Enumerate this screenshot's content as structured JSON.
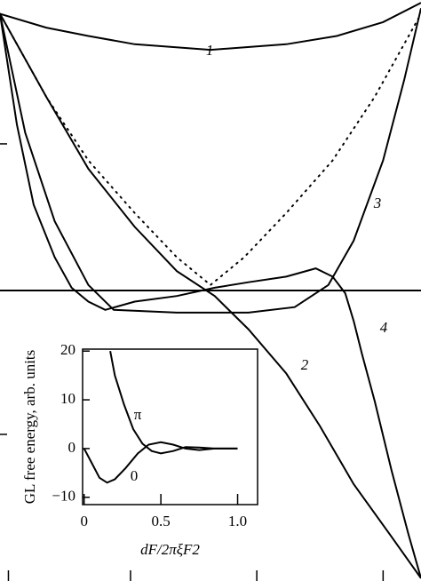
{
  "chart_data": [
    {
      "type": "line",
      "xlim": [
        0,
        1
      ],
      "ylim": [
        -1.05,
        1.05
      ],
      "xticks": [
        0.02,
        0.31,
        0.61,
        0.91
      ],
      "yticks": [
        -0.52,
        0.53
      ],
      "hlines": [
        0
      ],
      "series": [
        {
          "name": "1",
          "color": "#000000",
          "dash": "solid",
          "x": [
            0,
            0.11,
            0.21,
            0.32,
            0.5,
            0.68,
            0.8,
            0.91,
            1.0
          ],
          "values": [
            1.0,
            0.95,
            0.92,
            0.89,
            0.87,
            0.89,
            0.92,
            0.97,
            1.04
          ]
        },
        {
          "name": "2",
          "color": "#000000",
          "dash": "solid",
          "x": [
            0,
            0.11,
            0.21,
            0.32,
            0.42,
            0.51,
            0.59,
            0.68,
            0.76,
            0.84,
            0.93,
            1.0
          ],
          "values": [
            1.0,
            0.7,
            0.44,
            0.23,
            0.07,
            -0.02,
            -0.14,
            -0.3,
            -0.49,
            -0.7,
            -0.89,
            -1.04
          ]
        },
        {
          "name": "3",
          "color": "#000000",
          "dash": "solid",
          "x": [
            0,
            0.06,
            0.13,
            0.21,
            0.27,
            0.42,
            0.59,
            0.7,
            0.78,
            0.84,
            0.91,
            0.96,
            1.0
          ],
          "values": [
            1.0,
            0.57,
            0.25,
            0.02,
            -0.07,
            -0.08,
            -0.08,
            -0.06,
            0.02,
            0.18,
            0.47,
            0.76,
            1.02
          ]
        },
        {
          "name": "4",
          "color": "#000000",
          "dash": "solid",
          "x": [
            0,
            0.04,
            0.08,
            0.13,
            0.17,
            0.21,
            0.25,
            0.32,
            0.42,
            0.51,
            0.59,
            0.68,
            0.75,
            0.79,
            0.82,
            0.84,
            0.86,
            0.89,
            0.93,
            0.97,
            1.0
          ],
          "values": [
            1.0,
            0.6,
            0.31,
            0.12,
            0.01,
            -0.04,
            -0.07,
            -0.04,
            -0.02,
            0.01,
            0.03,
            0.05,
            0.08,
            0.05,
            -0.01,
            -0.11,
            -0.23,
            -0.4,
            -0.65,
            -0.88,
            -1.04
          ]
        },
        {
          "color": "#000000",
          "dash": "dotted",
          "x": [
            0,
            0.11,
            0.21,
            0.32,
            0.42,
            0.5,
            0.58,
            0.68,
            0.79,
            0.89,
            1.0
          ],
          "values": [
            1.0,
            0.7,
            0.47,
            0.28,
            0.12,
            0.02,
            0.12,
            0.28,
            0.47,
            0.7,
            1.0
          ]
        }
      ]
    },
    {
      "type": "line",
      "xlabel": "dF/2πξF2",
      "ylabel": "GL free energy, arb. units",
      "xlim": [
        -0.01,
        1.13
      ],
      "ylim": [
        -11.5,
        20.4
      ],
      "xticks": [
        0,
        0.5,
        {
          "value": 1,
          "label": "1.0"
        }
      ],
      "yticks": [
        {
          "value": -10,
          "label": "−10"
        },
        0,
        10,
        20
      ],
      "series": [
        {
          "name": "π",
          "color": "#000000",
          "dash": "solid",
          "x": [
            0.17,
            0.2,
            0.26,
            0.32,
            0.38,
            0.44,
            0.5,
            0.58,
            0.66,
            0.75,
            0.85,
            1.0
          ],
          "values": [
            20,
            15,
            9,
            4,
            1,
            -0.5,
            -1,
            -0.5,
            0.3,
            0.2,
            0,
            0
          ]
        },
        {
          "name": "0",
          "color": "#000000",
          "dash": "solid",
          "x": [
            0,
            0.05,
            0.1,
            0.15,
            0.2,
            0.27,
            0.35,
            0.42,
            0.5,
            0.58,
            0.66,
            0.75,
            0.85,
            1.0
          ],
          "values": [
            0,
            -3,
            -6,
            -7,
            -6.3,
            -4,
            -1,
            0.8,
            1.3,
            0.8,
            0,
            -0.3,
            0,
            0
          ]
        }
      ]
    }
  ]
}
